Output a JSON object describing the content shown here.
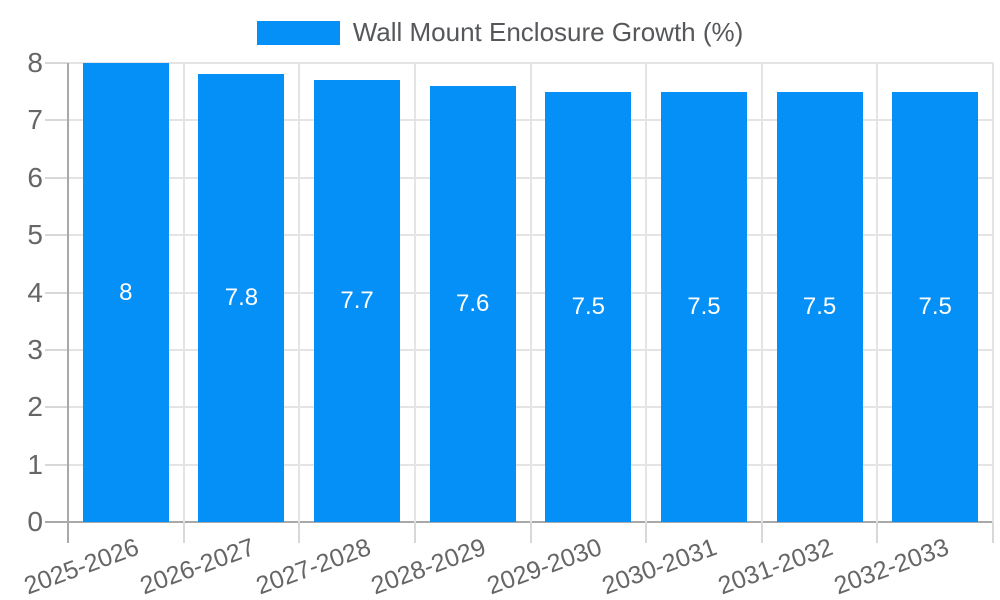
{
  "chart_data": {
    "type": "bar",
    "title": "Wall Mount Enclosure Growth (%)",
    "categories": [
      "2025-2026",
      "2026-2027",
      "2027-2028",
      "2028-2029",
      "2029-2030",
      "2030-2031",
      "2031-2032",
      "2032-2033"
    ],
    "values": [
      8,
      7.8,
      7.7,
      7.6,
      7.5,
      7.5,
      7.5,
      7.5
    ],
    "bar_labels": [
      "8",
      "7.8",
      "7.7",
      "7.6",
      "7.5",
      "7.5",
      "7.5",
      "7.5"
    ],
    "xlabel": "",
    "ylabel": "",
    "ylim": [
      0,
      8
    ],
    "yticks": [
      0,
      1,
      2,
      3,
      4,
      5,
      6,
      7,
      8
    ],
    "grid": true,
    "legend_position": "top-center",
    "colors": {
      "bar": "#0590f8",
      "value_label": "#ffffff",
      "axis_text": "#666666",
      "title_text": "#55575a",
      "grid_line": "#e4e4e4",
      "axis_line": "#a9a9a9",
      "tick_line": "#d8d8d8"
    }
  }
}
